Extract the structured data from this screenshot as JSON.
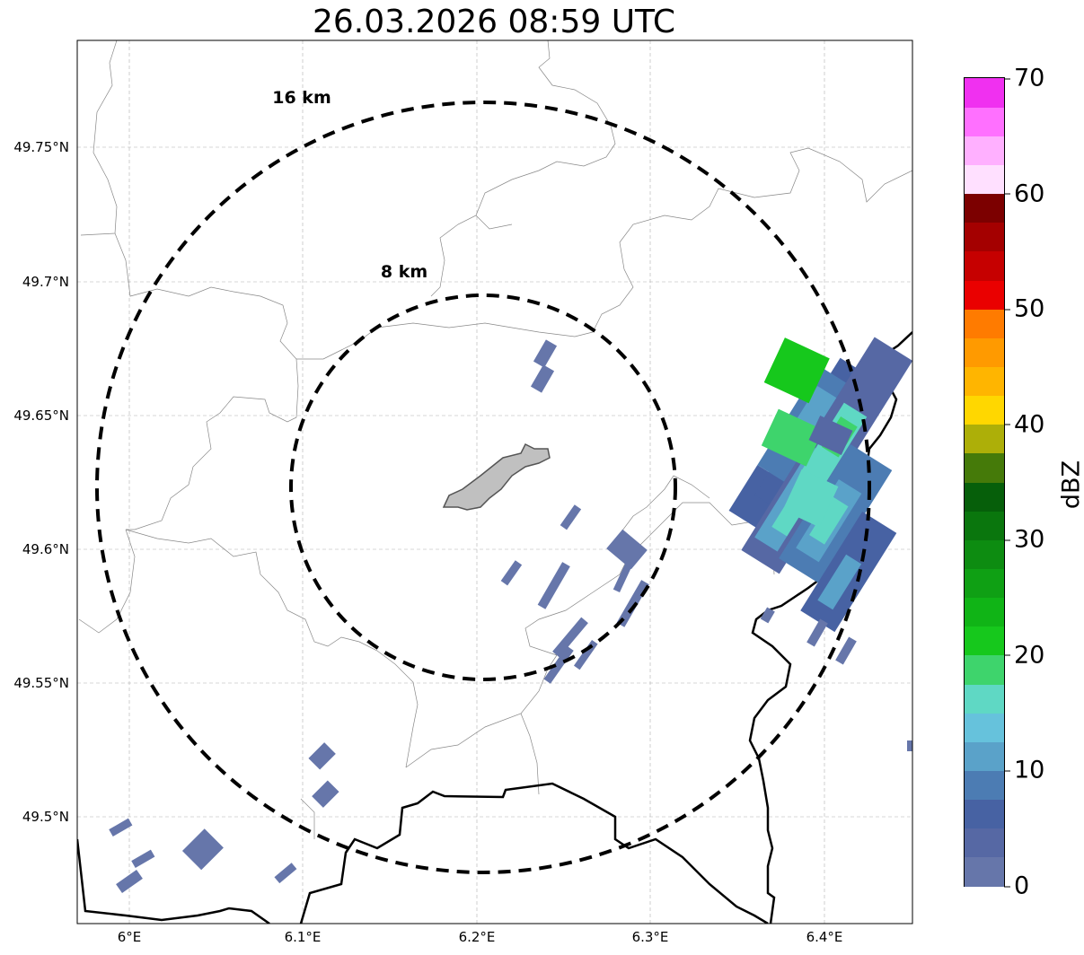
{
  "title": "26.03.2026 08:59 UTC",
  "map": {
    "lat_ticks": [
      "49.75°N",
      "49.7°N",
      "49.65°N",
      "49.6°N",
      "49.55°N",
      "49.5°N"
    ],
    "lon_ticks": [
      "6°E",
      "6.1°E",
      "6.2°E",
      "6.3°E",
      "6.4°E"
    ],
    "rings": [
      {
        "label": "16 km",
        "radius_km": 16
      },
      {
        "label": "8 km",
        "radius_km": 8
      }
    ],
    "boundary_color": "#000000",
    "commune_line_color": "#888888",
    "urban_area_color": "#c0c0c0"
  },
  "colorbar": {
    "label": "dBZ",
    "ticks": [
      "0",
      "10",
      "20",
      "30",
      "40",
      "50",
      "60",
      "70"
    ],
    "min": 0,
    "max": 70,
    "colors": [
      "#6676aa",
      "#5668a4",
      "#4762a3",
      "#4c7cb3",
      "#5aa2c9",
      "#66c2dc",
      "#5fd8c4",
      "#3ed46c",
      "#16c81c",
      "#10b416",
      "#0fa014",
      "#0d8c11",
      "#0a760d",
      "#065f0a",
      "#457a09",
      "#adaf08",
      "#ffd700",
      "#ffb500",
      "#ff9a00",
      "#ff7b00",
      "#ea0000",
      "#c60000",
      "#a40000",
      "#7c0000",
      "#ffe0ff",
      "#ffb0ff",
      "#ff70ff",
      "#f030f0"
    ]
  }
}
